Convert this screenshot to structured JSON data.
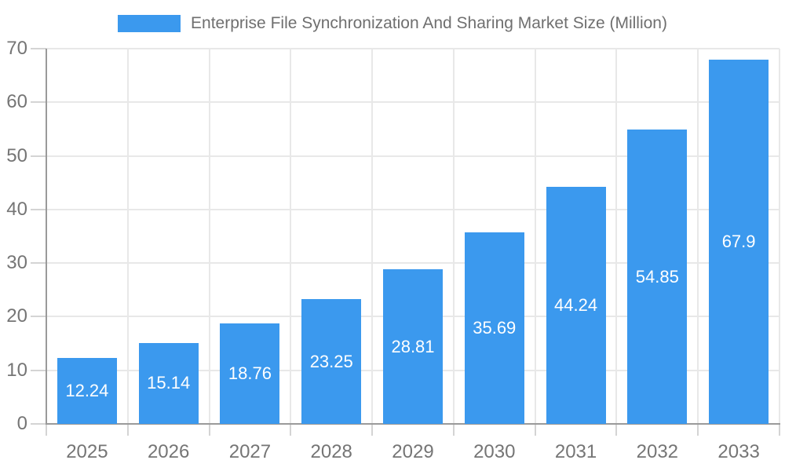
{
  "chart_data": {
    "type": "bar",
    "title": "Enterprise File Synchronization And Sharing Market Size (Million)",
    "categories": [
      "2025",
      "2026",
      "2027",
      "2028",
      "2029",
      "2030",
      "2031",
      "2032",
      "2033"
    ],
    "values": [
      12.24,
      15.14,
      18.76,
      23.25,
      28.81,
      35.69,
      44.24,
      54.85,
      67.9
    ],
    "value_labels": [
      "12.24",
      "15.14",
      "18.76",
      "23.25",
      "28.81",
      "35.69",
      "44.24",
      "54.85",
      "67.9"
    ],
    "xlabel": "",
    "ylabel": "",
    "ylim": [
      0,
      70
    ],
    "yticks": [
      0,
      10,
      20,
      30,
      40,
      50,
      60,
      70
    ],
    "grid": true,
    "legend_position": "top-center",
    "colors": {
      "bar": "#3b99ee",
      "value_label": "#ffffff",
      "gridline": "#e8e8e8",
      "axis_line": "#9a9a9a",
      "tick_mark": "#d4d4d4",
      "axis_text": "#757575",
      "legend_text": "#6f6f6f",
      "background": "#ffffff"
    }
  }
}
